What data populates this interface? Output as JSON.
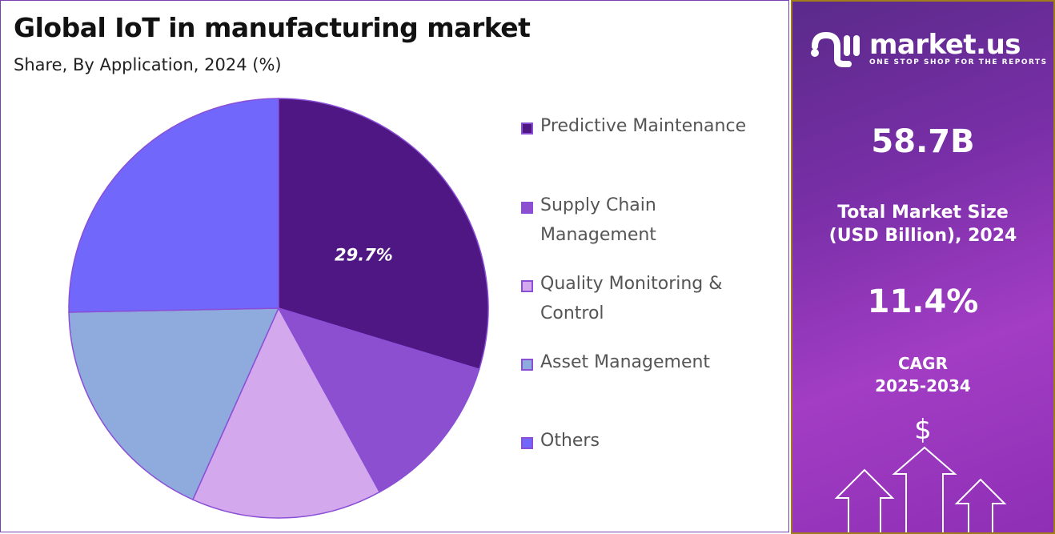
{
  "header": {
    "title": "Global IoT in manufacturing market",
    "subtitle": "Share, By Application, 2024 (%)"
  },
  "chart_data": {
    "type": "pie",
    "title": "Global IoT in manufacturing market",
    "subtitle": "Share, By Application, 2024 (%)",
    "legend_placement": "right",
    "start_angle": "top, clockwise",
    "slices": [
      {
        "label": "Predictive Maintenance",
        "value": 29.7,
        "color": "#4f1783",
        "data_label": "29.7%"
      },
      {
        "label": "Supply Chain Management",
        "value": 12.3,
        "color": "#8b4fcf"
      },
      {
        "label": "Quality Monitoring & Control",
        "value": 14.7,
        "color": "#d4a8ec"
      },
      {
        "label": "Asset Management",
        "value": 18.0,
        "color": "#8faadc"
      },
      {
        "label": "Others",
        "value": 25.3,
        "color": "#7167fb"
      }
    ],
    "legend_lines": [
      [
        "Predictive Maintenance"
      ],
      [
        "Supply Chain",
        "Management"
      ],
      [
        "Quality Monitoring &",
        "Control"
      ],
      [
        "Asset Management"
      ],
      [
        "Others"
      ]
    ]
  },
  "sidebar": {
    "brand": "market.us",
    "tagline": "ONE STOP SHOP FOR THE REPORTS",
    "market_size": "58.7B",
    "market_size_label_1": "Total Market Size",
    "market_size_label_2": "(USD Billion), 2024",
    "cagr": "11.4%",
    "cagr_label_1": "CAGR",
    "cagr_label_2": "2025-2034",
    "dollar_icon": "$",
    "icons": [
      "dollar-icon",
      "up-arrow-icon"
    ]
  }
}
